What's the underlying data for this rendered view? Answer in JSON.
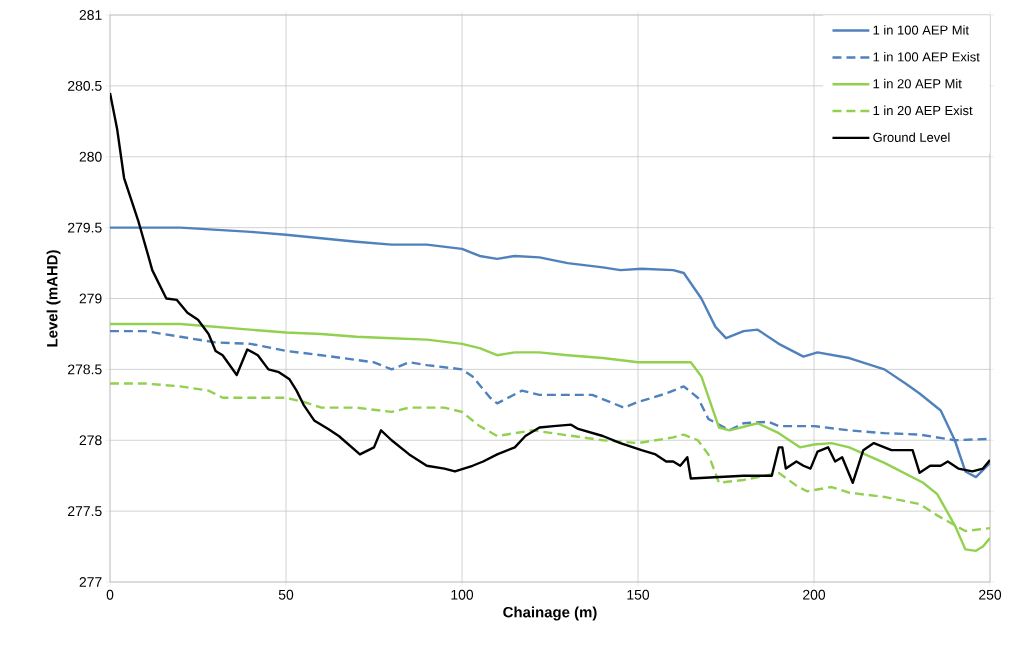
{
  "chart_data": {
    "type": "line",
    "xlabel": "Chainage (m)",
    "ylabel": "Level (mAHD)",
    "xlim": [
      0,
      250
    ],
    "ylim": [
      277,
      281
    ],
    "xticks": [
      0,
      50,
      100,
      150,
      200,
      250
    ],
    "yticks": [
      277,
      277.5,
      278,
      278.5,
      279,
      279.5,
      280,
      280.5,
      281
    ],
    "grid": true,
    "legend": "top right",
    "marker": "none",
    "series": [
      {
        "name": "1 in 100 AEP Mit",
        "color": "#4f81bd",
        "line_style": "solid",
        "x": [
          0,
          20,
          40,
          50,
          70,
          80,
          90,
          100,
          105,
          110,
          115,
          122,
          130,
          140,
          145,
          151,
          160,
          163,
          168,
          172,
          175,
          180,
          184,
          190,
          197,
          201,
          210,
          220,
          226,
          230,
          236,
          240,
          243,
          246,
          250
        ],
        "values": [
          279.5,
          279.5,
          279.47,
          279.45,
          279.4,
          279.38,
          279.38,
          279.35,
          279.3,
          279.28,
          279.3,
          279.29,
          279.25,
          279.22,
          279.2,
          279.21,
          279.2,
          279.18,
          279.0,
          278.8,
          278.72,
          278.77,
          278.78,
          278.68,
          278.59,
          278.62,
          278.58,
          278.5,
          278.4,
          278.33,
          278.21,
          278.0,
          277.78,
          277.74,
          277.84
        ]
      },
      {
        "name": "1 in 100 AEP Exist",
        "color": "#4f81bd",
        "line_style": "dashed",
        "x": [
          0,
          10,
          20,
          30,
          40,
          50,
          60,
          75,
          80,
          85,
          90,
          100,
          103,
          108,
          110,
          117,
          122,
          130,
          137,
          146,
          150,
          158,
          163,
          167,
          170,
          176,
          180,
          187,
          190,
          200,
          210,
          220,
          230,
          240,
          250
        ],
        "values": [
          278.77,
          278.77,
          278.73,
          278.69,
          278.68,
          278.63,
          278.6,
          278.55,
          278.5,
          278.55,
          278.53,
          278.5,
          278.45,
          278.3,
          278.26,
          278.35,
          278.32,
          278.32,
          278.32,
          278.23,
          278.27,
          278.33,
          278.38,
          278.3,
          278.15,
          278.07,
          278.12,
          278.13,
          278.1,
          278.1,
          278.07,
          278.05,
          278.04,
          278.0,
          278.01
        ]
      },
      {
        "name": "1 in 20 AEP Mit",
        "color": "#92d050",
        "line_style": "solid",
        "x": [
          0,
          20,
          30,
          40,
          50,
          60,
          70,
          80,
          90,
          100,
          105,
          110,
          115,
          122,
          130,
          140,
          150,
          162,
          165,
          168,
          173,
          176,
          184,
          190,
          196,
          200,
          205,
          210,
          220,
          231,
          235,
          240,
          243,
          246,
          248,
          250
        ],
        "values": [
          278.82,
          278.82,
          278.8,
          278.78,
          278.76,
          278.75,
          278.73,
          278.72,
          278.71,
          278.68,
          278.65,
          278.6,
          278.62,
          278.62,
          278.6,
          278.58,
          278.55,
          278.55,
          278.55,
          278.45,
          278.09,
          278.07,
          278.12,
          278.05,
          277.95,
          277.97,
          277.98,
          277.95,
          277.84,
          277.7,
          277.62,
          277.4,
          277.23,
          277.22,
          277.25,
          277.31
        ]
      },
      {
        "name": "1 in 20 AEP Exist",
        "color": "#92d050",
        "line_style": "dashed",
        "x": [
          0,
          10,
          20,
          28,
          32,
          50,
          55,
          60,
          70,
          80,
          85,
          95,
          100,
          105,
          110,
          115,
          120,
          140,
          150,
          160,
          163,
          167,
          170,
          173,
          180,
          190,
          195,
          198,
          205,
          210,
          220,
          230,
          235,
          240,
          243,
          250
        ],
        "values": [
          278.4,
          278.4,
          278.38,
          278.35,
          278.3,
          278.3,
          278.27,
          278.23,
          278.23,
          278.2,
          278.23,
          278.23,
          278.2,
          278.1,
          278.03,
          278.05,
          278.07,
          278.0,
          277.98,
          278.02,
          278.04,
          278.0,
          277.9,
          277.7,
          277.72,
          277.77,
          277.68,
          277.64,
          277.67,
          277.63,
          277.6,
          277.55,
          277.47,
          277.4,
          277.36,
          277.38
        ]
      },
      {
        "name": "Ground Level",
        "color": "#000000",
        "line_style": "solid",
        "x": [
          0,
          2,
          4,
          6,
          8,
          11,
          12,
          14,
          16,
          19,
          22,
          25,
          28,
          30,
          32,
          36,
          39,
          42,
          45,
          48,
          51,
          53,
          55,
          58,
          62,
          65,
          71,
          75,
          77,
          80,
          85,
          90,
          95,
          98,
          103,
          106,
          110,
          115,
          118,
          122,
          126,
          131,
          133,
          140,
          145,
          151,
          155,
          158,
          160,
          162,
          164,
          165,
          180,
          188,
          190,
          191,
          192,
          195,
          197,
          199,
          201,
          204,
          206,
          208,
          211,
          214,
          217,
          222,
          228,
          230,
          233,
          236,
          238,
          241,
          245,
          248,
          250
        ],
        "values": [
          280.45,
          280.2,
          279.85,
          279.7,
          279.55,
          279.29,
          279.2,
          279.1,
          279.0,
          278.99,
          278.9,
          278.85,
          278.75,
          278.63,
          278.6,
          278.46,
          278.64,
          278.6,
          278.5,
          278.48,
          278.43,
          278.35,
          278.25,
          278.14,
          278.08,
          278.03,
          277.9,
          277.95,
          278.07,
          278.0,
          277.9,
          277.82,
          277.8,
          277.78,
          277.82,
          277.85,
          277.9,
          277.95,
          278.03,
          278.09,
          278.1,
          278.11,
          278.08,
          278.03,
          277.98,
          277.93,
          277.9,
          277.85,
          277.85,
          277.82,
          277.88,
          277.73,
          277.75,
          277.75,
          277.95,
          277.95,
          277.8,
          277.85,
          277.82,
          277.8,
          277.92,
          277.95,
          277.85,
          277.88,
          277.7,
          277.93,
          277.98,
          277.93,
          277.93,
          277.77,
          277.82,
          277.82,
          277.85,
          277.8,
          277.78,
          277.8,
          277.86
        ]
      }
    ]
  }
}
